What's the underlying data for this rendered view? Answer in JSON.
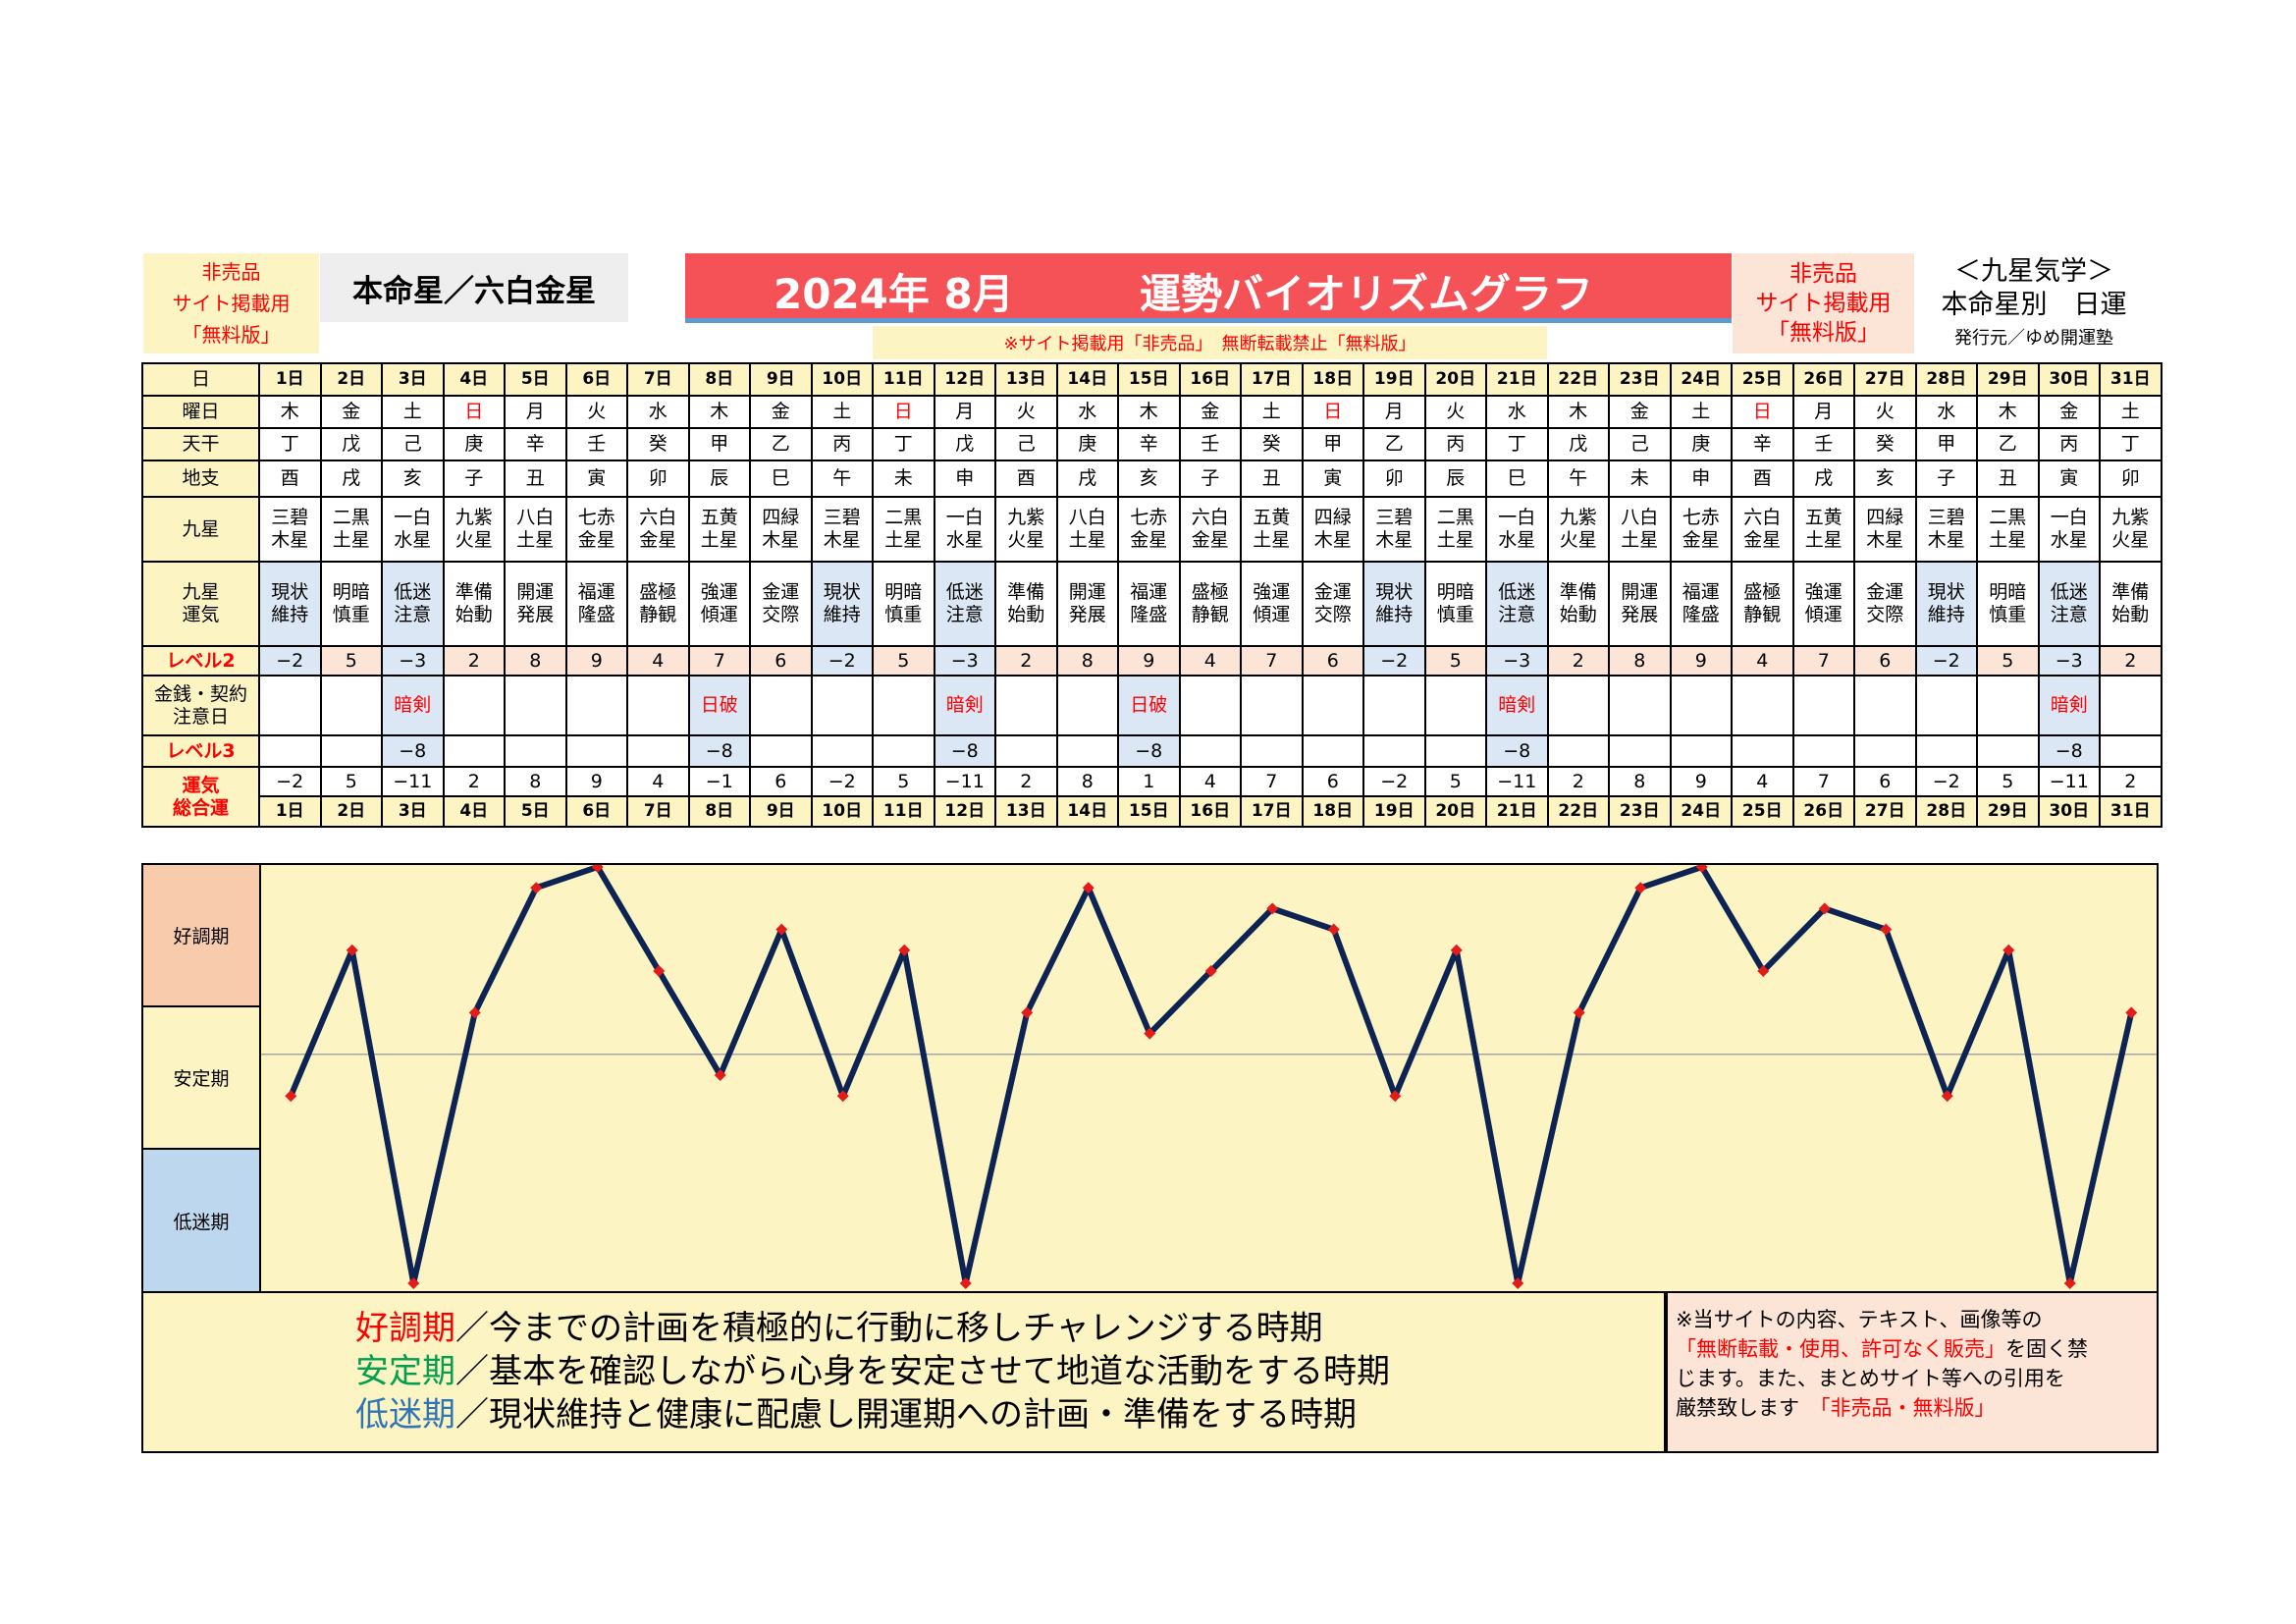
{
  "header": {
    "left_badge": [
      "非売品",
      "サイト掲載用",
      "「無料版」"
    ],
    "star_box": "本命星／六白金星",
    "title_year_month": "2024年 8月",
    "title_main": "運勢バイオリズムグラフ",
    "right_badge": [
      "非売品",
      "サイト掲載用",
      "「無料版」"
    ],
    "brand_line1": "＜九星気学＞",
    "brand_line2": "本命星別　日運",
    "publisher": "発行元／ゆめ開運塾",
    "notice": "※サイト掲載用「非売品」　無断転載禁止「無料版」"
  },
  "row_labels": {
    "day": "日",
    "weekday": "曜日",
    "tenkan": "天干",
    "chishi": "地支",
    "kyusei": "九星",
    "kyusei_unki": [
      "九星",
      "運気"
    ],
    "level2": "レベル2",
    "kinsen": [
      "金銭・契約",
      "注意日"
    ],
    "level3": "レベル3",
    "sougou": [
      "運気",
      "総合運"
    ]
  },
  "days": [
    "1日",
    "2日",
    "3日",
    "4日",
    "5日",
    "6日",
    "7日",
    "8日",
    "9日",
    "10日",
    "11日",
    "12日",
    "13日",
    "14日",
    "15日",
    "16日",
    "17日",
    "18日",
    "19日",
    "20日",
    "21日",
    "22日",
    "23日",
    "24日",
    "25日",
    "26日",
    "27日",
    "28日",
    "29日",
    "30日",
    "31日"
  ],
  "weekdays": [
    "木",
    "金",
    "土",
    "日",
    "月",
    "火",
    "水",
    "木",
    "金",
    "土",
    "日",
    "月",
    "火",
    "水",
    "木",
    "金",
    "土",
    "日",
    "月",
    "火",
    "水",
    "木",
    "金",
    "土",
    "日",
    "月",
    "火",
    "水",
    "木",
    "金",
    "土"
  ],
  "tenkan": [
    "丁",
    "戊",
    "己",
    "庚",
    "辛",
    "壬",
    "癸",
    "甲",
    "乙",
    "丙",
    "丁",
    "戊",
    "己",
    "庚",
    "辛",
    "壬",
    "癸",
    "甲",
    "乙",
    "丙",
    "丁",
    "戊",
    "己",
    "庚",
    "辛",
    "壬",
    "癸",
    "甲",
    "乙",
    "丙",
    "丁"
  ],
  "chishi": [
    "酉",
    "戌",
    "亥",
    "子",
    "丑",
    "寅",
    "卯",
    "辰",
    "巳",
    "午",
    "未",
    "申",
    "酉",
    "戌",
    "亥",
    "子",
    "丑",
    "寅",
    "卯",
    "辰",
    "巳",
    "午",
    "未",
    "申",
    "酉",
    "戌",
    "亥",
    "子",
    "丑",
    "寅",
    "卯"
  ],
  "kyusei": [
    [
      "三碧",
      "木星"
    ],
    [
      "二黒",
      "土星"
    ],
    [
      "一白",
      "水星"
    ],
    [
      "九紫",
      "火星"
    ],
    [
      "八白",
      "土星"
    ],
    [
      "七赤",
      "金星"
    ],
    [
      "六白",
      "金星"
    ],
    [
      "五黄",
      "土星"
    ],
    [
      "四緑",
      "木星"
    ],
    [
      "三碧",
      "木星"
    ],
    [
      "二黒",
      "土星"
    ],
    [
      "一白",
      "水星"
    ],
    [
      "九紫",
      "火星"
    ],
    [
      "八白",
      "土星"
    ],
    [
      "七赤",
      "金星"
    ],
    [
      "六白",
      "金星"
    ],
    [
      "五黄",
      "土星"
    ],
    [
      "四緑",
      "木星"
    ],
    [
      "三碧",
      "木星"
    ],
    [
      "二黒",
      "土星"
    ],
    [
      "一白",
      "水星"
    ],
    [
      "九紫",
      "火星"
    ],
    [
      "八白",
      "土星"
    ],
    [
      "七赤",
      "金星"
    ],
    [
      "六白",
      "金星"
    ],
    [
      "五黄",
      "土星"
    ],
    [
      "四緑",
      "木星"
    ],
    [
      "三碧",
      "木星"
    ],
    [
      "二黒",
      "土星"
    ],
    [
      "一白",
      "水星"
    ],
    [
      "九紫",
      "火星"
    ]
  ],
  "unki": [
    [
      "現状",
      "維持"
    ],
    [
      "明暗",
      "慎重"
    ],
    [
      "低迷",
      "注意"
    ],
    [
      "準備",
      "始動"
    ],
    [
      "開運",
      "発展"
    ],
    [
      "福運",
      "隆盛"
    ],
    [
      "盛極",
      "静観"
    ],
    [
      "強運",
      "傾運"
    ],
    [
      "金運",
      "交際"
    ],
    [
      "現状",
      "維持"
    ],
    [
      "明暗",
      "慎重"
    ],
    [
      "低迷",
      "注意"
    ],
    [
      "準備",
      "始動"
    ],
    [
      "開運",
      "発展"
    ],
    [
      "福運",
      "隆盛"
    ],
    [
      "盛極",
      "静観"
    ],
    [
      "強運",
      "傾運"
    ],
    [
      "金運",
      "交際"
    ],
    [
      "現状",
      "維持"
    ],
    [
      "明暗",
      "慎重"
    ],
    [
      "低迷",
      "注意"
    ],
    [
      "準備",
      "始動"
    ],
    [
      "開運",
      "発展"
    ],
    [
      "福運",
      "隆盛"
    ],
    [
      "盛極",
      "静観"
    ],
    [
      "強運",
      "傾運"
    ],
    [
      "金運",
      "交際"
    ],
    [
      "現状",
      "維持"
    ],
    [
      "明暗",
      "慎重"
    ],
    [
      "低迷",
      "注意"
    ],
    [
      "準備",
      "始動"
    ]
  ],
  "level2": [
    "−2",
    "5",
    "−3",
    "2",
    "8",
    "9",
    "4",
    "7",
    "6",
    "−2",
    "5",
    "−3",
    "2",
    "8",
    "9",
    "4",
    "7",
    "6",
    "−2",
    "5",
    "−3",
    "2",
    "8",
    "9",
    "4",
    "7",
    "6",
    "−2",
    "5",
    "−3",
    "2"
  ],
  "kinsen": [
    "",
    "",
    "暗剣",
    "",
    "",
    "",
    "",
    "日破",
    "",
    "",
    "",
    "暗剣",
    "",
    "",
    "日破",
    "",
    "",
    "",
    "",
    "",
    "暗剣",
    "",
    "",
    "",
    "",
    "",
    "",
    "",
    "",
    "暗剣",
    ""
  ],
  "level3": [
    "",
    "",
    "−8",
    "",
    "",
    "",
    "",
    "−8",
    "",
    "",
    "",
    "−8",
    "",
    "",
    "−8",
    "",
    "",
    "",
    "",
    "",
    "−8",
    "",
    "",
    "",
    "",
    "",
    "",
    "",
    "",
    "−8",
    ""
  ],
  "sougou": [
    "−2",
    "5",
    "−11",
    "2",
    "8",
    "9",
    "4",
    "−1",
    "6",
    "−2",
    "5",
    "−11",
    "2",
    "8",
    "1",
    "4",
    "7",
    "6",
    "−2",
    "5",
    "−11",
    "2",
    "8",
    "9",
    "4",
    "7",
    "6",
    "−2",
    "5",
    "−11",
    "2"
  ],
  "zones": {
    "good": "好調期",
    "stable": "安定期",
    "low": "低迷期"
  },
  "legend": {
    "good_label": "好調期",
    "good_text": "／今までの計画を積極的に行動に移しチャレンジする時期",
    "stable_label": "安定期",
    "stable_text": "／基本を確認しながら心身を安定させて地道な活動をする時期",
    "low_label": "低迷期",
    "low_text": "／現状維持と健康に配慮し開運期への計画・準備をする時期"
  },
  "note": {
    "l1": "※当サイトの内容、テキスト、画像等の",
    "l2_red": "「無断転載・使用、許可なく販売」",
    "l2_rest": "を固く禁",
    "l3": "じます。また、まとめサイト等への引用を",
    "l4": "厳禁致します",
    "l4_red": "「非売品・無料版」"
  },
  "chart_data": {
    "type": "line",
    "x": [
      1,
      2,
      3,
      4,
      5,
      6,
      7,
      8,
      9,
      10,
      11,
      12,
      13,
      14,
      15,
      16,
      17,
      18,
      19,
      20,
      21,
      22,
      23,
      24,
      25,
      26,
      27,
      28,
      29,
      30,
      31
    ],
    "categories": [
      "1日",
      "2日",
      "3日",
      "4日",
      "5日",
      "6日",
      "7日",
      "8日",
      "9日",
      "10日",
      "11日",
      "12日",
      "13日",
      "14日",
      "15日",
      "16日",
      "17日",
      "18日",
      "19日",
      "20日",
      "21日",
      "22日",
      "23日",
      "24日",
      "25日",
      "26日",
      "27日",
      "28日",
      "29日",
      "30日",
      "31日"
    ],
    "series": [
      {
        "values": [
          -2,
          5,
          -11,
          2,
          8,
          9,
          4,
          -1,
          6,
          -2,
          5,
          -11,
          2,
          8,
          1,
          4,
          7,
          6,
          -2,
          5,
          -11,
          2,
          8,
          9,
          4,
          7,
          6,
          -2,
          5,
          -11,
          2
        ]
      }
    ],
    "ylim": [
      -11,
      9
    ],
    "line_color": "#0d2353",
    "marker_color": "#e31b1b",
    "zone_colors": {
      "good": "#f8cbad",
      "stable": "#fdf4c3",
      "low": "#bdd7ee"
    },
    "grid": false
  }
}
